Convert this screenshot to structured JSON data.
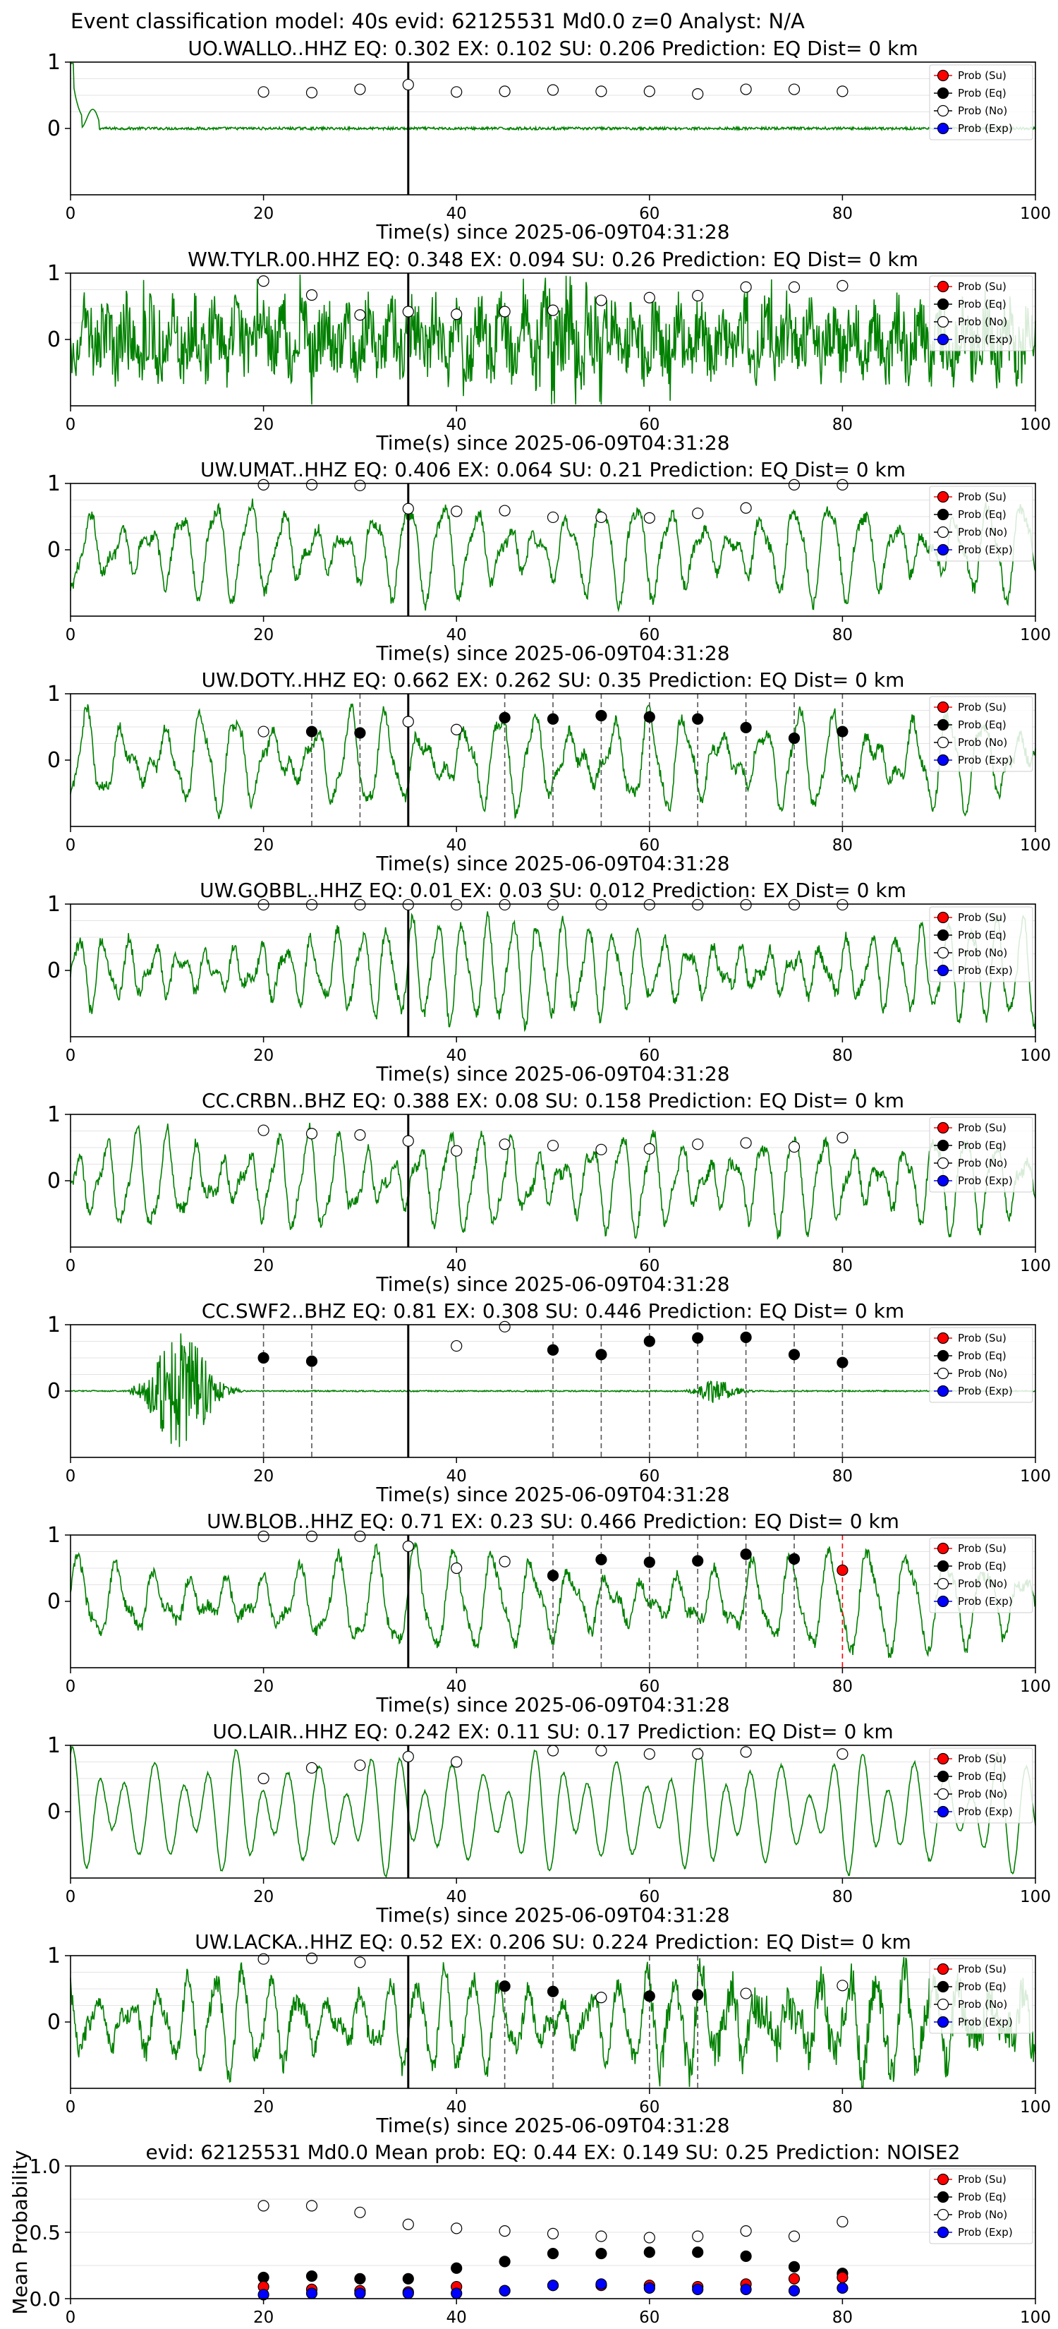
{
  "figure_title": "Event classification model: 40s evid: 62125531 Md0.0 z=0 Analyst: N/A",
  "legend_labels": [
    "Prob (Su)",
    "Prob (Eq)",
    "Prob (No)",
    "Prob (Exp)"
  ],
  "colors": {
    "waveform": "#008000",
    "su": "#ff0000",
    "eq": "#000000",
    "no": "#ffffff",
    "exp": "#0000ff",
    "onset_line": "#000000",
    "pick_line": "#555555",
    "su_pick_line": "#ff0000"
  },
  "chart_data": [
    {
      "type": "line",
      "title": "UO.WALLO..HHZ   EQ: 0.302  EX: 0.102  SU: 0.206   Prediction: EQ    Dist= 0 km",
      "xlabel": "Time(s) since 2025-06-09T04:31:28",
      "xlim": [
        0,
        100
      ],
      "ylim": [
        -1,
        1
      ],
      "xticks": [
        0,
        20,
        40,
        60,
        80,
        100
      ],
      "yticks": [
        1,
        0
      ],
      "grid": true,
      "legend": "top-right",
      "waveform": "decaying-pulse-then-flat",
      "onset_time": 35,
      "prob_no": {
        "x": [
          20,
          25,
          30,
          35,
          40,
          45,
          50,
          55,
          60,
          65,
          70,
          75,
          80
        ],
        "y": [
          0.55,
          0.54,
          0.59,
          0.66,
          0.55,
          0.56,
          0.58,
          0.56,
          0.56,
          0.52,
          0.59,
          0.59,
          0.56
        ]
      },
      "prob_eq": {
        "x": [],
        "y": []
      },
      "prob_su": {
        "x": [],
        "y": []
      },
      "pick_times": []
    },
    {
      "type": "line",
      "title": "WW.TYLR.00.HHZ   EQ: 0.348  EX: 0.094  SU: 0.26   Prediction: EQ    Dist= 0 km",
      "xlabel": "Time(s) since 2025-06-09T04:31:28",
      "xlim": [
        0,
        100
      ],
      "ylim": [
        -1,
        1
      ],
      "xticks": [
        0,
        20,
        40,
        60,
        80,
        100
      ],
      "yticks": [
        1,
        0
      ],
      "grid": true,
      "legend": "top-right",
      "waveform": "dense-noise",
      "onset_time": 35,
      "prob_no": {
        "x": [
          20,
          25,
          30,
          35,
          40,
          45,
          50,
          55,
          60,
          65,
          70,
          75,
          80
        ],
        "y": [
          0.88,
          0.67,
          0.37,
          0.42,
          0.38,
          0.42,
          0.44,
          0.59,
          0.63,
          0.66,
          0.79,
          0.79,
          0.81
        ]
      },
      "prob_eq": {
        "x": [],
        "y": []
      },
      "prob_su": {
        "x": [],
        "y": []
      },
      "pick_times": []
    },
    {
      "type": "line",
      "title": "UW.UMAT..HHZ   EQ: 0.406  EX: 0.064  SU: 0.21   Prediction: EQ    Dist= 0 km",
      "xlabel": "Time(s) since 2025-06-09T04:31:28",
      "xlim": [
        0,
        100
      ],
      "ylim": [
        -1,
        1
      ],
      "xticks": [
        0,
        20,
        40,
        60,
        80,
        100
      ],
      "yticks": [
        1,
        0
      ],
      "grid": true,
      "legend": "top-right",
      "waveform": "oscillating",
      "onset_time": 35,
      "prob_no": {
        "x": [
          20,
          25,
          30,
          35,
          40,
          45,
          50,
          55,
          60,
          65,
          70,
          75,
          80
        ],
        "y": [
          0.98,
          0.98,
          0.97,
          0.62,
          0.58,
          0.59,
          0.49,
          0.49,
          0.48,
          0.55,
          0.63,
          0.98,
          0.98
        ]
      },
      "prob_eq": {
        "x": [],
        "y": []
      },
      "prob_su": {
        "x": [],
        "y": []
      },
      "pick_times": []
    },
    {
      "type": "line",
      "title": "UW.DOTY..HHZ   EQ: 0.662  EX: 0.262  SU: 0.35   Prediction: EQ    Dist= 0 km",
      "xlabel": "Time(s) since 2025-06-09T04:31:28",
      "xlim": [
        0,
        100
      ],
      "ylim": [
        -1,
        1
      ],
      "xticks": [
        0,
        20,
        40,
        60,
        80,
        100
      ],
      "yticks": [
        1,
        0
      ],
      "grid": true,
      "legend": "top-right",
      "waveform": "oscillating",
      "onset_time": 35,
      "prob_no": {
        "x": [
          20,
          35,
          40
        ],
        "y": [
          0.43,
          0.58,
          0.46
        ]
      },
      "prob_eq": {
        "x": [
          25,
          30,
          45,
          50,
          55,
          60,
          65,
          70,
          75,
          80
        ],
        "y": [
          0.43,
          0.41,
          0.64,
          0.62,
          0.67,
          0.65,
          0.62,
          0.49,
          0.33,
          0.43
        ]
      },
      "prob_su": {
        "x": [],
        "y": []
      },
      "pick_times": [
        25,
        30,
        45,
        50,
        55,
        60,
        65,
        70,
        75,
        80
      ]
    },
    {
      "type": "line",
      "title": "UW.GOBBL..HHZ   EQ: 0.01  EX: 0.03  SU: 0.012   Prediction: EX    Dist= 0 km",
      "xlabel": "Time(s) since 2025-06-09T04:31:28",
      "xlim": [
        0,
        100
      ],
      "ylim": [
        -1,
        1
      ],
      "xticks": [
        0,
        20,
        40,
        60,
        80,
        100
      ],
      "yticks": [
        1,
        0
      ],
      "grid": true,
      "legend": "top-right",
      "waveform": "oscillating",
      "onset_time": 35,
      "prob_no": {
        "x": [
          20,
          25,
          30,
          35,
          40,
          45,
          50,
          55,
          60,
          65,
          70,
          75,
          80
        ],
        "y": [
          0.99,
          0.99,
          0.99,
          0.99,
          0.99,
          0.99,
          0.99,
          0.99,
          0.99,
          0.99,
          0.99,
          0.99,
          0.99
        ]
      },
      "prob_eq": {
        "x": [],
        "y": []
      },
      "prob_su": {
        "x": [],
        "y": []
      },
      "pick_times": []
    },
    {
      "type": "line",
      "title": "CC.CRBN..BHZ   EQ: 0.388  EX: 0.08  SU: 0.158   Prediction: EQ    Dist= 0 km",
      "xlabel": "Time(s) since 2025-06-09T04:31:28",
      "xlim": [
        0,
        100
      ],
      "ylim": [
        -1,
        1
      ],
      "xticks": [
        0,
        20,
        40,
        60,
        80,
        100
      ],
      "yticks": [
        1,
        0
      ],
      "grid": true,
      "legend": "top-right",
      "waveform": "oscillating",
      "onset_time": 35,
      "prob_no": {
        "x": [
          20,
          25,
          30,
          35,
          40,
          45,
          50,
          55,
          60,
          65,
          70,
          75,
          80
        ],
        "y": [
          0.76,
          0.71,
          0.69,
          0.6,
          0.45,
          0.55,
          0.53,
          0.47,
          0.48,
          0.55,
          0.57,
          0.51,
          0.65
        ]
      },
      "prob_eq": {
        "x": [],
        "y": []
      },
      "prob_su": {
        "x": [],
        "y": []
      },
      "pick_times": []
    },
    {
      "type": "line",
      "title": "CC.SWF2..BHZ   EQ: 0.81  EX: 0.308  SU: 0.446   Prediction: EQ    Dist= 0 km",
      "xlabel": "Time(s) since 2025-06-09T04:31:28",
      "xlim": [
        0,
        100
      ],
      "ylim": [
        -1,
        1
      ],
      "xticks": [
        0,
        20,
        40,
        60,
        80,
        100
      ],
      "yticks": [
        1,
        0
      ],
      "grid": true,
      "legend": "top-right",
      "waveform": "burst-then-flat",
      "onset_time": 35,
      "prob_no": {
        "x": [
          40,
          45
        ],
        "y": [
          0.68,
          0.97
        ]
      },
      "prob_eq": {
        "x": [
          20,
          25,
          50,
          55,
          60,
          65,
          70,
          75,
          80
        ],
        "y": [
          0.5,
          0.45,
          0.62,
          0.55,
          0.75,
          0.8,
          0.81,
          0.55,
          0.43
        ]
      },
      "prob_su": {
        "x": [],
        "y": []
      },
      "pick_times": [
        20,
        25,
        50,
        55,
        60,
        65,
        70,
        75,
        80
      ]
    },
    {
      "type": "line",
      "title": "UW.BLOB..HHZ   EQ: 0.71  EX: 0.23  SU: 0.466   Prediction: EQ    Dist= 0 km",
      "xlabel": "Time(s) since 2025-06-09T04:31:28",
      "xlim": [
        0,
        100
      ],
      "ylim": [
        -1,
        1
      ],
      "xticks": [
        0,
        20,
        40,
        60,
        80,
        100
      ],
      "yticks": [
        1,
        0
      ],
      "grid": true,
      "legend": "top-right",
      "waveform": "oscillating",
      "onset_time": 35,
      "prob_no": {
        "x": [
          20,
          25,
          30,
          35,
          40,
          45
        ],
        "y": [
          0.98,
          0.98,
          0.98,
          0.83,
          0.5,
          0.6
        ]
      },
      "prob_eq": {
        "x": [
          50,
          55,
          60,
          65,
          70,
          75
        ],
        "y": [
          0.39,
          0.63,
          0.59,
          0.61,
          0.71,
          0.64
        ]
      },
      "prob_su": {
        "x": [
          80
        ],
        "y": [
          0.47
        ]
      },
      "pick_times": [
        50,
        55,
        60,
        65,
        70,
        75
      ],
      "su_pick_times": [
        80
      ]
    },
    {
      "type": "line",
      "title": "UO.LAIR..HHZ   EQ: 0.242  EX: 0.11  SU: 0.17   Prediction: EQ    Dist= 0 km",
      "xlabel": "Time(s) since 2025-06-09T04:31:28",
      "xlim": [
        0,
        100
      ],
      "ylim": [
        -1,
        1
      ],
      "xticks": [
        0,
        20,
        40,
        60,
        80,
        100
      ],
      "yticks": [
        1,
        0
      ],
      "grid": true,
      "legend": "top-right",
      "waveform": "smooth-oscillating",
      "onset_time": 35,
      "prob_no": {
        "x": [
          20,
          25,
          30,
          35,
          40,
          50,
          55,
          60,
          65,
          70,
          80
        ],
        "y": [
          0.5,
          0.66,
          0.7,
          0.83,
          0.75,
          0.92,
          0.92,
          0.87,
          0.87,
          0.9,
          0.87
        ]
      },
      "prob_eq": {
        "x": [],
        "y": []
      },
      "prob_su": {
        "x": [],
        "y": []
      },
      "pick_times": []
    },
    {
      "type": "line",
      "title": "UW.LACKA..HHZ   EQ: 0.52  EX: 0.206  SU: 0.224   Prediction: EQ    Dist= 0 km",
      "xlabel": "Time(s) since 2025-06-09T04:31:28",
      "xlim": [
        0,
        100
      ],
      "ylim": [
        -1,
        1
      ],
      "xticks": [
        0,
        20,
        40,
        60,
        80,
        100
      ],
      "yticks": [
        1,
        0
      ],
      "grid": true,
      "legend": "top-right",
      "waveform": "oscillating-noisy",
      "onset_time": 35,
      "prob_no": {
        "x": [
          20,
          25,
          30,
          55,
          70,
          80
        ],
        "y": [
          0.95,
          0.96,
          0.9,
          0.37,
          0.43,
          0.55
        ]
      },
      "prob_eq": {
        "x": [
          45,
          50,
          60,
          65
        ],
        "y": [
          0.54,
          0.46,
          0.39,
          0.41
        ]
      },
      "prob_su": {
        "x": [],
        "y": []
      },
      "pick_times": [
        45,
        50,
        60,
        65
      ]
    },
    {
      "type": "scatter",
      "title": "evid: 62125531  Md0.0   Mean prob:   EQ: 0.44  EX: 0.149  SU: 0.25   Prediction: NOISE2",
      "xlabel": "",
      "ylabel": "Mean Probability",
      "xlim": [
        0,
        100
      ],
      "ylim": [
        0,
        1
      ],
      "xticks": [
        0,
        20,
        40,
        60,
        80,
        100
      ],
      "yticks": [
        1.0,
        0.5,
        0.0
      ],
      "grid": true,
      "legend": "top-right",
      "x": [
        20,
        25,
        30,
        35,
        40,
        45,
        50,
        55,
        60,
        65,
        70,
        75,
        80
      ],
      "series": [
        {
          "name": "Prob (Su)",
          "values": [
            0.09,
            0.07,
            0.06,
            0.05,
            0.09,
            0.06,
            0.1,
            0.1,
            0.1,
            0.09,
            0.11,
            0.15,
            0.16
          ]
        },
        {
          "name": "Prob (Eq)",
          "values": [
            0.16,
            0.17,
            0.15,
            0.15,
            0.23,
            0.28,
            0.34,
            0.34,
            0.35,
            0.35,
            0.32,
            0.24,
            0.19
          ]
        },
        {
          "name": "Prob (No)",
          "values": [
            0.7,
            0.7,
            0.65,
            0.56,
            0.53,
            0.51,
            0.49,
            0.47,
            0.46,
            0.47,
            0.51,
            0.47,
            0.58
          ]
        },
        {
          "name": "Prob (Exp)",
          "values": [
            0.03,
            0.04,
            0.04,
            0.04,
            0.04,
            0.06,
            0.1,
            0.11,
            0.08,
            0.07,
            0.07,
            0.06,
            0.08
          ]
        }
      ]
    }
  ]
}
